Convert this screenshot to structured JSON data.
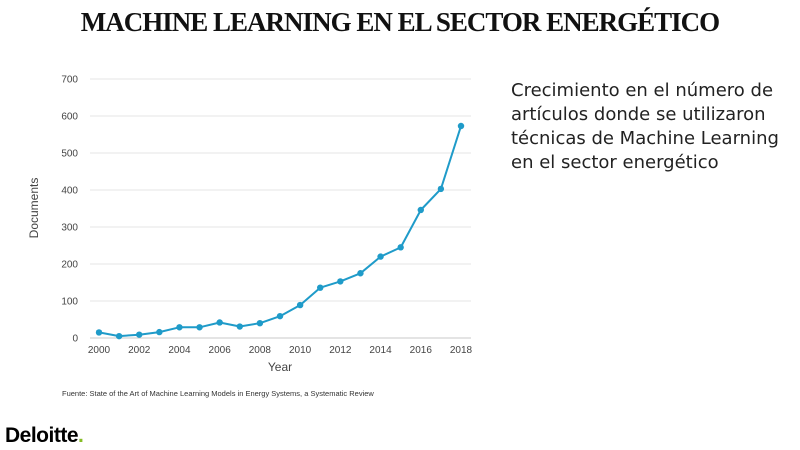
{
  "slide": {
    "title": "MACHINE LEARNING EN EL SECTOR ENERGÉTICO",
    "description": "Crecimiento en el número de artículos donde se utilizaron técnicas de Machine Learning en el sector energético",
    "source": "Fuente: State of the Art of Machine Learning Models in Energy Systems, a Systematic Review",
    "logo_text": "Deloitte",
    "logo_dot": ".",
    "logo_dot_color": "#86bc25"
  },
  "chart_data": {
    "type": "line",
    "title": "",
    "xlabel": "Year",
    "ylabel": "Documents",
    "xlim": [
      2000,
      2018
    ],
    "ylim": [
      0,
      700
    ],
    "x_ticks": [
      2000,
      2002,
      2004,
      2006,
      2008,
      2010,
      2012,
      2014,
      2016,
      2018
    ],
    "y_ticks": [
      0,
      100,
      200,
      300,
      400,
      500,
      600,
      700
    ],
    "grid": "horizontal",
    "legend": "none",
    "series_color": "#1f9bc9",
    "series": [
      {
        "x": [
          2000,
          2001,
          2002,
          2003,
          2004,
          2005,
          2006,
          2007,
          2008,
          2009,
          2010,
          2011,
          2012,
          2013,
          2014,
          2015,
          2016,
          2017,
          2018
        ],
        "values": [
          15,
          5,
          9,
          16,
          29,
          29,
          42,
          31,
          40,
          59,
          89,
          136,
          153,
          175,
          220,
          245,
          346,
          403,
          573
        ]
      }
    ]
  }
}
